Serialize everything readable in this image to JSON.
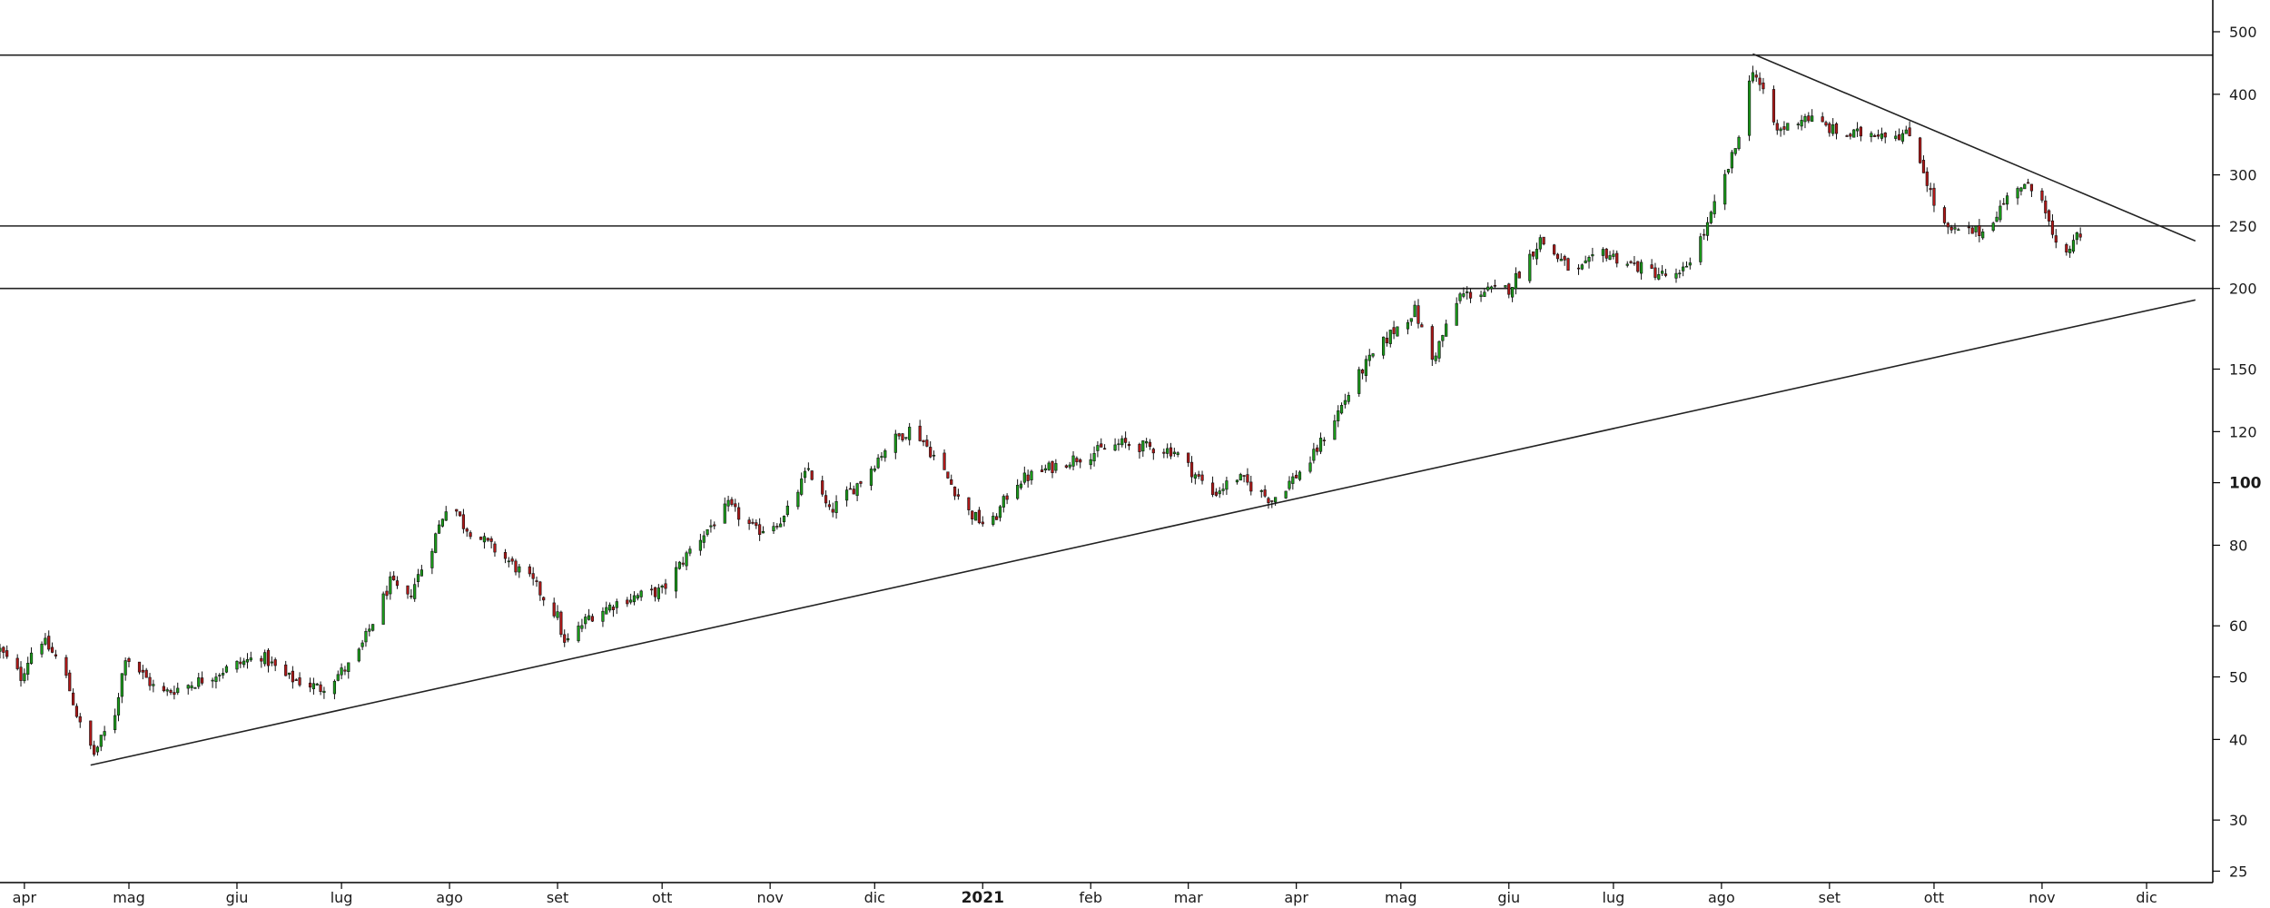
{
  "colors": {
    "up": "#1a9d1a",
    "down": "#b01818",
    "wick": "#111111",
    "line": "#222222",
    "axis": "#000000",
    "background": "#ffffff"
  },
  "chart_data": {
    "type": "candlestick",
    "y_scale": "log",
    "ylim": [
      24,
      560
    ],
    "xlim": [
      "2020-03-25",
      "2021-12-20"
    ],
    "y_ticks": [
      {
        "value": 25,
        "label": "25"
      },
      {
        "value": 30,
        "label": "30"
      },
      {
        "value": 40,
        "label": "40"
      },
      {
        "value": 50,
        "label": "50"
      },
      {
        "value": 60,
        "label": "60"
      },
      {
        "value": 80,
        "label": "80"
      },
      {
        "value": 100,
        "label": "100",
        "major": true
      },
      {
        "value": 120,
        "label": "120"
      },
      {
        "value": 150,
        "label": "150"
      },
      {
        "value": 200,
        "label": "200"
      },
      {
        "value": 250,
        "label": "250"
      },
      {
        "value": 300,
        "label": "300"
      },
      {
        "value": 400,
        "label": "400"
      },
      {
        "value": 500,
        "label": "500"
      }
    ],
    "x_ticks": [
      {
        "date": "2020-04-01",
        "label": "apr"
      },
      {
        "date": "2020-05-01",
        "label": "mag"
      },
      {
        "date": "2020-06-01",
        "label": "giu"
      },
      {
        "date": "2020-07-01",
        "label": "lug"
      },
      {
        "date": "2020-08-01",
        "label": "ago"
      },
      {
        "date": "2020-09-01",
        "label": "set"
      },
      {
        "date": "2020-10-01",
        "label": "ott"
      },
      {
        "date": "2020-11-01",
        "label": "nov"
      },
      {
        "date": "2020-12-01",
        "label": "dic"
      },
      {
        "date": "2021-01-01",
        "label": "2021",
        "year": true
      },
      {
        "date": "2021-02-01",
        "label": "feb"
      },
      {
        "date": "2021-03-01",
        "label": "mar"
      },
      {
        "date": "2021-04-01",
        "label": "apr"
      },
      {
        "date": "2021-05-01",
        "label": "mag"
      },
      {
        "date": "2021-06-01",
        "label": "giu"
      },
      {
        "date": "2021-07-01",
        "label": "lug"
      },
      {
        "date": "2021-08-01",
        "label": "ago"
      },
      {
        "date": "2021-09-01",
        "label": "set"
      },
      {
        "date": "2021-10-01",
        "label": "ott"
      },
      {
        "date": "2021-11-01",
        "label": "nov"
      },
      {
        "date": "2021-12-01",
        "label": "dic"
      }
    ],
    "horizontal_lines": [
      {
        "name": "resistance-460",
        "value": 460
      },
      {
        "name": "resistance-250",
        "value": 250
      },
      {
        "name": "support-200",
        "value": 200
      }
    ],
    "trendlines": [
      {
        "name": "rising-support-trendline",
        "from": {
          "date": "2020-04-20",
          "value": 36.5
        },
        "to": {
          "date": "2021-12-15",
          "value": 192
        }
      },
      {
        "name": "falling-resistance-trendline",
        "from": {
          "date": "2021-08-10",
          "value": 462
        },
        "to": {
          "date": "2021-12-15",
          "value": 237
        }
      }
    ],
    "price_anchors": [
      [
        "2020-03-25",
        55
      ],
      [
        "2020-03-31",
        50
      ],
      [
        "2020-04-05",
        58
      ],
      [
        "2020-04-12",
        52
      ],
      [
        "2020-04-17",
        42
      ],
      [
        "2020-04-21",
        38
      ],
      [
        "2020-04-27",
        44
      ],
      [
        "2020-04-30",
        54
      ],
      [
        "2020-05-10",
        47
      ],
      [
        "2020-05-20",
        49
      ],
      [
        "2020-05-31",
        52
      ],
      [
        "2020-06-08",
        54
      ],
      [
        "2020-06-15",
        50
      ],
      [
        "2020-06-25",
        48
      ],
      [
        "2020-07-05",
        53
      ],
      [
        "2020-07-15",
        70
      ],
      [
        "2020-07-20",
        66
      ],
      [
        "2020-07-27",
        80
      ],
      [
        "2020-08-01",
        95
      ],
      [
        "2020-08-05",
        86
      ],
      [
        "2020-08-15",
        78
      ],
      [
        "2020-08-25",
        70
      ],
      [
        "2020-09-01",
        62
      ],
      [
        "2020-09-03",
        56
      ],
      [
        "2020-09-10",
        62
      ],
      [
        "2020-09-20",
        66
      ],
      [
        "2020-10-01",
        68
      ],
      [
        "2020-10-10",
        80
      ],
      [
        "2020-10-20",
        92
      ],
      [
        "2020-10-28",
        84
      ],
      [
        "2020-11-05",
        88
      ],
      [
        "2020-11-12",
        105
      ],
      [
        "2020-11-18",
        90
      ],
      [
        "2020-11-28",
        102
      ],
      [
        "2020-12-05",
        115
      ],
      [
        "2020-12-12",
        122
      ],
      [
        "2020-12-18",
        110
      ],
      [
        "2020-12-28",
        90
      ],
      [
        "2021-01-03",
        85
      ],
      [
        "2021-01-10",
        100
      ],
      [
        "2021-01-25",
        108
      ],
      [
        "2021-02-10",
        115
      ],
      [
        "2021-02-25",
        112
      ],
      [
        "2021-03-08",
        96
      ],
      [
        "2021-03-15",
        102
      ],
      [
        "2021-03-25",
        94
      ],
      [
        "2021-04-05",
        108
      ],
      [
        "2021-04-20",
        150
      ],
      [
        "2021-04-28",
        170
      ],
      [
        "2021-05-05",
        185
      ],
      [
        "2021-05-10",
        155
      ],
      [
        "2021-05-18",
        195
      ],
      [
        "2021-06-01",
        200
      ],
      [
        "2021-06-10",
        238
      ],
      [
        "2021-06-20",
        210
      ],
      [
        "2021-06-28",
        228
      ],
      [
        "2021-07-06",
        218
      ],
      [
        "2021-07-15",
        210
      ],
      [
        "2021-07-20",
        208
      ],
      [
        "2021-07-28",
        250
      ],
      [
        "2021-08-05",
        330
      ],
      [
        "2021-08-10",
        440
      ],
      [
        "2021-08-17",
        350
      ],
      [
        "2021-08-25",
        370
      ],
      [
        "2021-09-05",
        345
      ],
      [
        "2021-09-15",
        350
      ],
      [
        "2021-09-25",
        345
      ],
      [
        "2021-10-01",
        270
      ],
      [
        "2021-10-05",
        245
      ],
      [
        "2021-10-15",
        245
      ],
      [
        "2021-10-25",
        290
      ],
      [
        "2021-11-01",
        280
      ],
      [
        "2021-11-04",
        240
      ],
      [
        "2021-11-07",
        215
      ],
      [
        "2021-11-10",
        240
      ],
      [
        "2021-11-12",
        238
      ]
    ]
  }
}
